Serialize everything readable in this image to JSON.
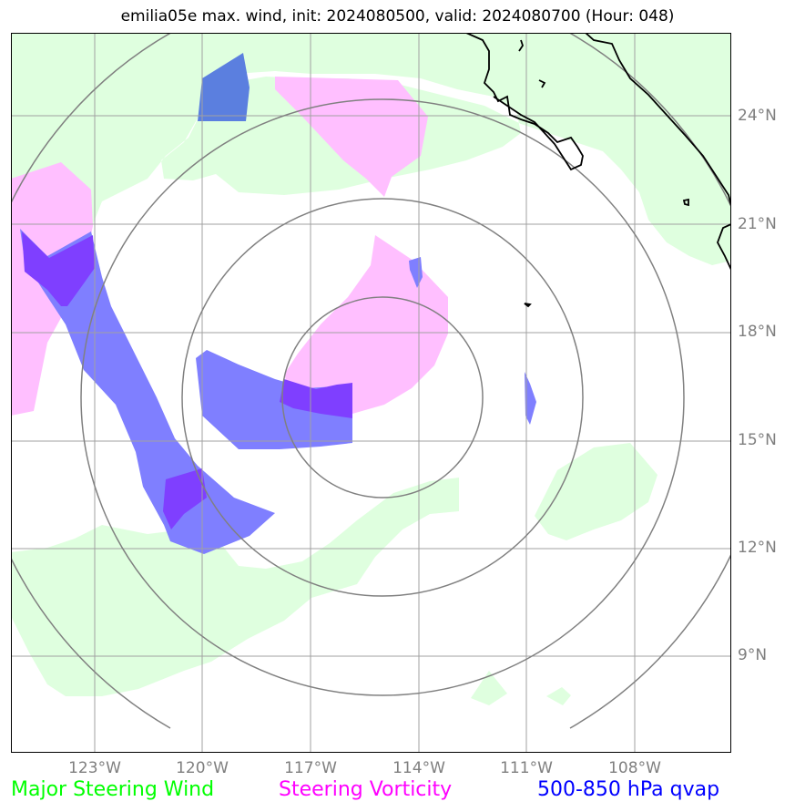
{
  "title": "emilia05e max. wind, init: 2024080500, valid: 2024080700 (Hour: 048)",
  "map": {
    "lat_ticks": [
      "24°N",
      "21°N",
      "18°N",
      "15°N",
      "12°N",
      "9°N"
    ],
    "lon_ticks": [
      "123°W",
      "120°W",
      "117°W",
      "114°W",
      "111°W",
      "108°W"
    ],
    "lon_range": [
      -125.3,
      -105.3
    ],
    "lat_range": [
      6.2,
      26.2
    ],
    "colors": {
      "steering_wind": "#dfffdf",
      "steering_vorticity": "#ffbfff",
      "qvap": "#7f7fff",
      "overlap": "#7f3fff",
      "coastline": "#000000",
      "gridlines": "#a0a0a0",
      "range_rings": "#808080"
    }
  },
  "legend": {
    "steering_wind": "Major Steering Wind",
    "steering_vorticity": "Steering Vorticity",
    "qvap": "500-850 hPa qvap",
    "steering_wind_color": "#00ff00",
    "steering_vorticity_color": "#ff00ff",
    "qvap_color": "#0000ff"
  }
}
